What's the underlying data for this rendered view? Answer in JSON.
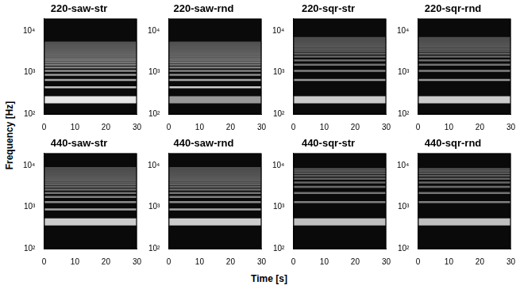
{
  "xlabel": "Time [s]",
  "ylabel": "Frequency [Hz]",
  "chart_data": [
    {
      "type": "spectrogram",
      "title": "220-saw-str",
      "xlim": [
        0,
        30
      ],
      "xticks": [
        0,
        10,
        20,
        30
      ],
      "ylim": [
        100,
        20000
      ],
      "yticks": [
        {
          "value": 100,
          "label": "10²"
        },
        {
          "value": 1000,
          "label": "10³"
        },
        {
          "value": 10000,
          "label": "10⁴"
        }
      ],
      "log": "y",
      "grid": false,
      "frequencies": [
        220,
        440,
        660,
        880,
        1100,
        1320,
        1540,
        1760,
        1980,
        2200,
        2420,
        2640,
        2860,
        3080,
        3300,
        3520,
        3740,
        3960,
        4180,
        4400,
        4620,
        4840,
        5060,
        5280
      ],
      "levels": [
        0.9,
        0.75,
        0.65,
        0.6,
        0.55,
        0.5,
        0.5,
        0.45,
        0.45,
        0.42,
        0.4,
        0.4,
        0.38,
        0.38,
        0.36,
        0.36,
        0.35,
        0.35,
        0.34,
        0.34,
        0.33,
        0.33,
        0.32,
        0.32
      ]
    },
    {
      "type": "spectrogram",
      "title": "220-saw-rnd",
      "xlim": [
        0,
        30
      ],
      "xticks": [
        0,
        10,
        20,
        30
      ],
      "ylim": [
        100,
        20000
      ],
      "yticks": [
        {
          "value": 100,
          "label": "10²"
        },
        {
          "value": 1000,
          "label": "10³"
        },
        {
          "value": 10000,
          "label": "10⁴"
        }
      ],
      "log": "y",
      "grid": false,
      "frequencies": [
        220,
        440,
        660,
        880,
        1100,
        1320,
        1540,
        1760,
        1980,
        2200,
        2420,
        2640,
        2860,
        3080,
        3300,
        3520,
        3740,
        3960,
        4180,
        4400,
        4620,
        4840,
        5060,
        5280
      ],
      "levels": [
        0.6,
        0.8,
        0.65,
        0.55,
        0.5,
        0.5,
        0.45,
        0.45,
        0.42,
        0.4,
        0.4,
        0.38,
        0.38,
        0.36,
        0.36,
        0.35,
        0.35,
        0.34,
        0.34,
        0.33,
        0.33,
        0.32,
        0.32,
        0.3
      ]
    },
    {
      "type": "spectrogram",
      "title": "220-sqr-str",
      "xlim": [
        0,
        30
      ],
      "xticks": [
        0,
        10,
        20,
        30
      ],
      "ylim": [
        100,
        20000
      ],
      "yticks": [
        {
          "value": 100,
          "label": "10²"
        },
        {
          "value": 1000,
          "label": "10³"
        },
        {
          "value": 10000,
          "label": "10⁴"
        }
      ],
      "log": "y",
      "grid": false,
      "frequencies": [
        220,
        660,
        1100,
        1540,
        1980,
        2420,
        2860,
        3300,
        3740,
        4180,
        4620,
        5060,
        5500,
        5940,
        6380,
        6820
      ],
      "levels": [
        0.8,
        0.6,
        0.5,
        0.45,
        0.42,
        0.4,
        0.38,
        0.36,
        0.35,
        0.34,
        0.33,
        0.32,
        0.31,
        0.3,
        0.3,
        0.3
      ]
    },
    {
      "type": "spectrogram",
      "title": "220-sqr-rnd",
      "xlim": [
        0,
        30
      ],
      "xticks": [
        0,
        10,
        20,
        30
      ],
      "ylim": [
        100,
        20000
      ],
      "yticks": [
        {
          "value": 100,
          "label": "10²"
        },
        {
          "value": 1000,
          "label": "10³"
        },
        {
          "value": 10000,
          "label": "10⁴"
        }
      ],
      "log": "y",
      "grid": false,
      "frequencies": [
        220,
        660,
        1100,
        1540,
        1980,
        2420,
        2860,
        3300,
        3740,
        4180,
        4620,
        5060,
        5500,
        5940,
        6380,
        6820
      ],
      "levels": [
        0.8,
        0.6,
        0.5,
        0.45,
        0.42,
        0.4,
        0.38,
        0.36,
        0.35,
        0.34,
        0.33,
        0.32,
        0.31,
        0.3,
        0.3,
        0.3
      ]
    },
    {
      "type": "spectrogram",
      "title": "440-saw-str",
      "xlim": [
        0,
        30
      ],
      "xticks": [
        0,
        10,
        20,
        30
      ],
      "ylim": [
        100,
        20000
      ],
      "yticks": [
        {
          "value": 100,
          "label": "10²"
        },
        {
          "value": 1000,
          "label": "10³"
        },
        {
          "value": 10000,
          "label": "10⁴"
        }
      ],
      "log": "y",
      "grid": false,
      "frequencies": [
        440,
        880,
        1320,
        1760,
        2200,
        2640,
        3080,
        3520,
        3960,
        4400,
        4840,
        5280,
        5720,
        6160,
        6600,
        7040,
        7480,
        7920,
        8360,
        8800
      ],
      "levels": [
        0.8,
        0.65,
        0.55,
        0.5,
        0.45,
        0.42,
        0.4,
        0.38,
        0.37,
        0.36,
        0.35,
        0.34,
        0.33,
        0.32,
        0.32,
        0.31,
        0.31,
        0.3,
        0.3,
        0.3
      ]
    },
    {
      "type": "spectrogram",
      "title": "440-saw-rnd",
      "xlim": [
        0,
        30
      ],
      "xticks": [
        0,
        10,
        20,
        30
      ],
      "ylim": [
        100,
        20000
      ],
      "yticks": [
        {
          "value": 100,
          "label": "10²"
        },
        {
          "value": 1000,
          "label": "10³"
        },
        {
          "value": 10000,
          "label": "10⁴"
        }
      ],
      "log": "y",
      "grid": false,
      "frequencies": [
        440,
        880,
        1320,
        1760,
        2200,
        2640,
        3080,
        3520,
        3960,
        4400,
        4840,
        5280,
        5720,
        6160,
        6600,
        7040,
        7480,
        7920,
        8360,
        8800
      ],
      "levels": [
        0.8,
        0.65,
        0.55,
        0.5,
        0.45,
        0.42,
        0.4,
        0.38,
        0.37,
        0.36,
        0.35,
        0.34,
        0.33,
        0.32,
        0.32,
        0.31,
        0.31,
        0.3,
        0.3,
        0.3
      ]
    },
    {
      "type": "spectrogram",
      "title": "440-sqr-str",
      "xlim": [
        0,
        30
      ],
      "xticks": [
        0,
        10,
        20,
        30
      ],
      "ylim": [
        100,
        20000
      ],
      "yticks": [
        {
          "value": 100,
          "label": "10²"
        },
        {
          "value": 1000,
          "label": "10³"
        },
        {
          "value": 10000,
          "label": "10⁴"
        }
      ],
      "log": "y",
      "grid": false,
      "frequencies": [
        440,
        1320,
        2200,
        3080,
        3960,
        4840,
        5720,
        6600,
        7480,
        8360
      ],
      "levels": [
        0.75,
        0.5,
        0.45,
        0.42,
        0.4,
        0.38,
        0.36,
        0.35,
        0.34,
        0.33
      ]
    },
    {
      "type": "spectrogram",
      "title": "440-sqr-rnd",
      "xlim": [
        0,
        30
      ],
      "xticks": [
        0,
        10,
        20,
        30
      ],
      "ylim": [
        100,
        20000
      ],
      "yticks": [
        {
          "value": 100,
          "label": "10²"
        },
        {
          "value": 1000,
          "label": "10³"
        },
        {
          "value": 10000,
          "label": "10⁴"
        }
      ],
      "log": "y",
      "grid": false,
      "frequencies": [
        440,
        1320,
        2200,
        3080,
        3960,
        4840,
        5720,
        6600,
        7480,
        8360
      ],
      "levels": [
        0.75,
        0.5,
        0.45,
        0.42,
        0.4,
        0.38,
        0.36,
        0.35,
        0.34,
        0.33
      ]
    }
  ]
}
